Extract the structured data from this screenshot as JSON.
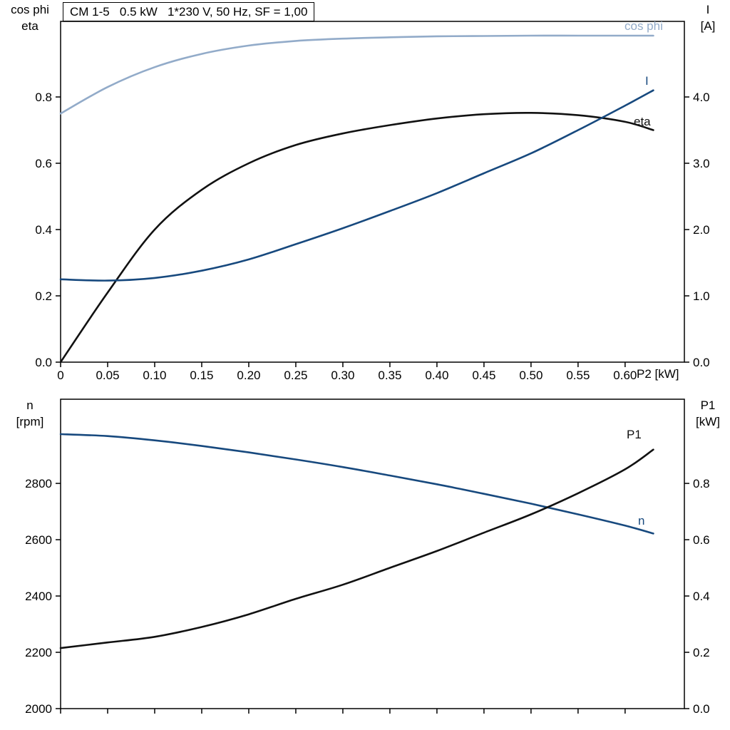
{
  "title": "CM 1-5   0.5 kW   1*230 V, 50 Hz, SF = 1,00",
  "colors": {
    "light_blue": "#92abc9",
    "dark_blue": "#17497e",
    "black": "#111111",
    "axis": "#000000"
  },
  "chart_data": [
    {
      "type": "line",
      "title": "CM 1-5   0.5 kW   1*230 V, 50 Hz, SF = 1,00",
      "x": [
        0,
        0.05,
        0.1,
        0.15,
        0.2,
        0.25,
        0.3,
        0.35,
        0.4,
        0.45,
        0.5,
        0.55,
        0.6,
        0.63
      ],
      "series": [
        {
          "name": "cos phi",
          "axis": "left",
          "color_key": "light_blue",
          "values": [
            0.75,
            0.83,
            0.89,
            0.93,
            0.955,
            0.969,
            0.976,
            0.98,
            0.983,
            0.984,
            0.985,
            0.985,
            0.985,
            0.985
          ]
        },
        {
          "name": "eta",
          "axis": "left",
          "color_key": "black",
          "values": [
            0.0,
            0.21,
            0.4,
            0.52,
            0.6,
            0.655,
            0.69,
            0.715,
            0.735,
            0.748,
            0.752,
            0.745,
            0.725,
            0.7
          ]
        },
        {
          "name": "I",
          "axis": "right",
          "color_key": "dark_blue",
          "values": [
            1.25,
            1.23,
            1.27,
            1.38,
            1.55,
            1.78,
            2.02,
            2.28,
            2.55,
            2.85,
            3.15,
            3.5,
            3.87,
            4.1
          ]
        }
      ],
      "x_axis": {
        "label": "P2 [kW]",
        "range": [
          0,
          0.663
        ],
        "ticks": [
          "0",
          "0.05",
          "0.10",
          "0.15",
          "0.20",
          "0.25",
          "0.30",
          "0.35",
          "0.40",
          "0.45",
          "0.50",
          "0.55",
          "0.60"
        ]
      },
      "left_axis": {
        "name_lines": [
          "cos phi",
          "eta"
        ],
        "range": [
          0,
          1.028
        ],
        "ticks": [
          "0.0",
          "0.2",
          "0.4",
          "0.6",
          "0.8"
        ]
      },
      "right_axis": {
        "name_lines": [
          "I",
          "[A]"
        ],
        "range": [
          0,
          5.14
        ],
        "ticks": [
          "0.0",
          "1.0",
          "2.0",
          "3.0",
          "4.0"
        ]
      },
      "grid": false,
      "legend": "curve-end-labels"
    },
    {
      "type": "line",
      "title": "",
      "x": [
        0,
        0.05,
        0.1,
        0.15,
        0.2,
        0.25,
        0.3,
        0.35,
        0.4,
        0.45,
        0.5,
        0.55,
        0.6,
        0.63
      ],
      "series": [
        {
          "name": "n",
          "axis": "left",
          "color_key": "dark_blue",
          "values": [
            2975,
            2968,
            2953,
            2933,
            2910,
            2885,
            2858,
            2828,
            2797,
            2763,
            2728,
            2690,
            2650,
            2622
          ]
        },
        {
          "name": "P1",
          "axis": "right",
          "color_key": "black",
          "values": [
            0.215,
            0.235,
            0.255,
            0.29,
            0.335,
            0.39,
            0.44,
            0.5,
            0.56,
            0.625,
            0.69,
            0.765,
            0.85,
            0.92
          ]
        }
      ],
      "x_axis": {
        "label": "",
        "range": [
          0,
          0.663
        ],
        "ticks": [
          "0",
          "0.05",
          "0.10",
          "0.15",
          "0.20",
          "0.25",
          "0.30",
          "0.35",
          "0.40",
          "0.45",
          "0.50",
          "0.55",
          "0.60"
        ]
      },
      "left_axis": {
        "name_lines": [
          "n",
          "[rpm]"
        ],
        "range": [
          2000,
          3099
        ],
        "ticks": [
          "2000",
          "2200",
          "2400",
          "2600",
          "2800"
        ]
      },
      "right_axis": {
        "name_lines": [
          "P1",
          "[kW]"
        ],
        "range": [
          0,
          1.099
        ],
        "ticks": [
          "0.0",
          "0.2",
          "0.4",
          "0.6",
          "0.8"
        ]
      },
      "grid": false,
      "legend": "curve-end-labels"
    }
  ]
}
